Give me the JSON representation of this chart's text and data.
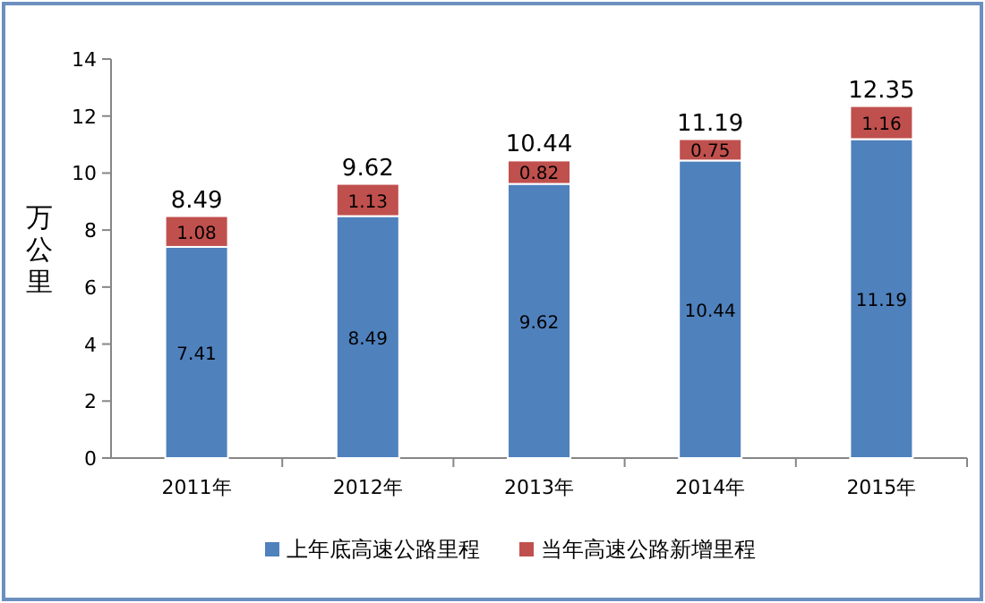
{
  "chart_data": {
    "type": "bar",
    "stacked": true,
    "categories": [
      "2011年",
      "2012年",
      "2013年",
      "2014年",
      "2015年"
    ],
    "series": [
      {
        "name": "上年底高速公路里程",
        "color": "#4f81bd",
        "values": [
          7.41,
          8.49,
          9.62,
          10.44,
          11.19
        ]
      },
      {
        "name": "当年高速公路新增里程",
        "color": "#c0504d",
        "values": [
          1.08,
          1.13,
          0.82,
          0.75,
          1.16
        ]
      }
    ],
    "ylabel": "万公里",
    "ylim": [
      0,
      14
    ],
    "yticks": [
      0,
      2,
      4,
      6,
      8,
      10,
      12,
      14
    ],
    "data_labels": true,
    "totals": [
      "8.49",
      "9.62",
      "10.44",
      "11.19",
      "12.35"
    ],
    "legend": "bottom"
  }
}
